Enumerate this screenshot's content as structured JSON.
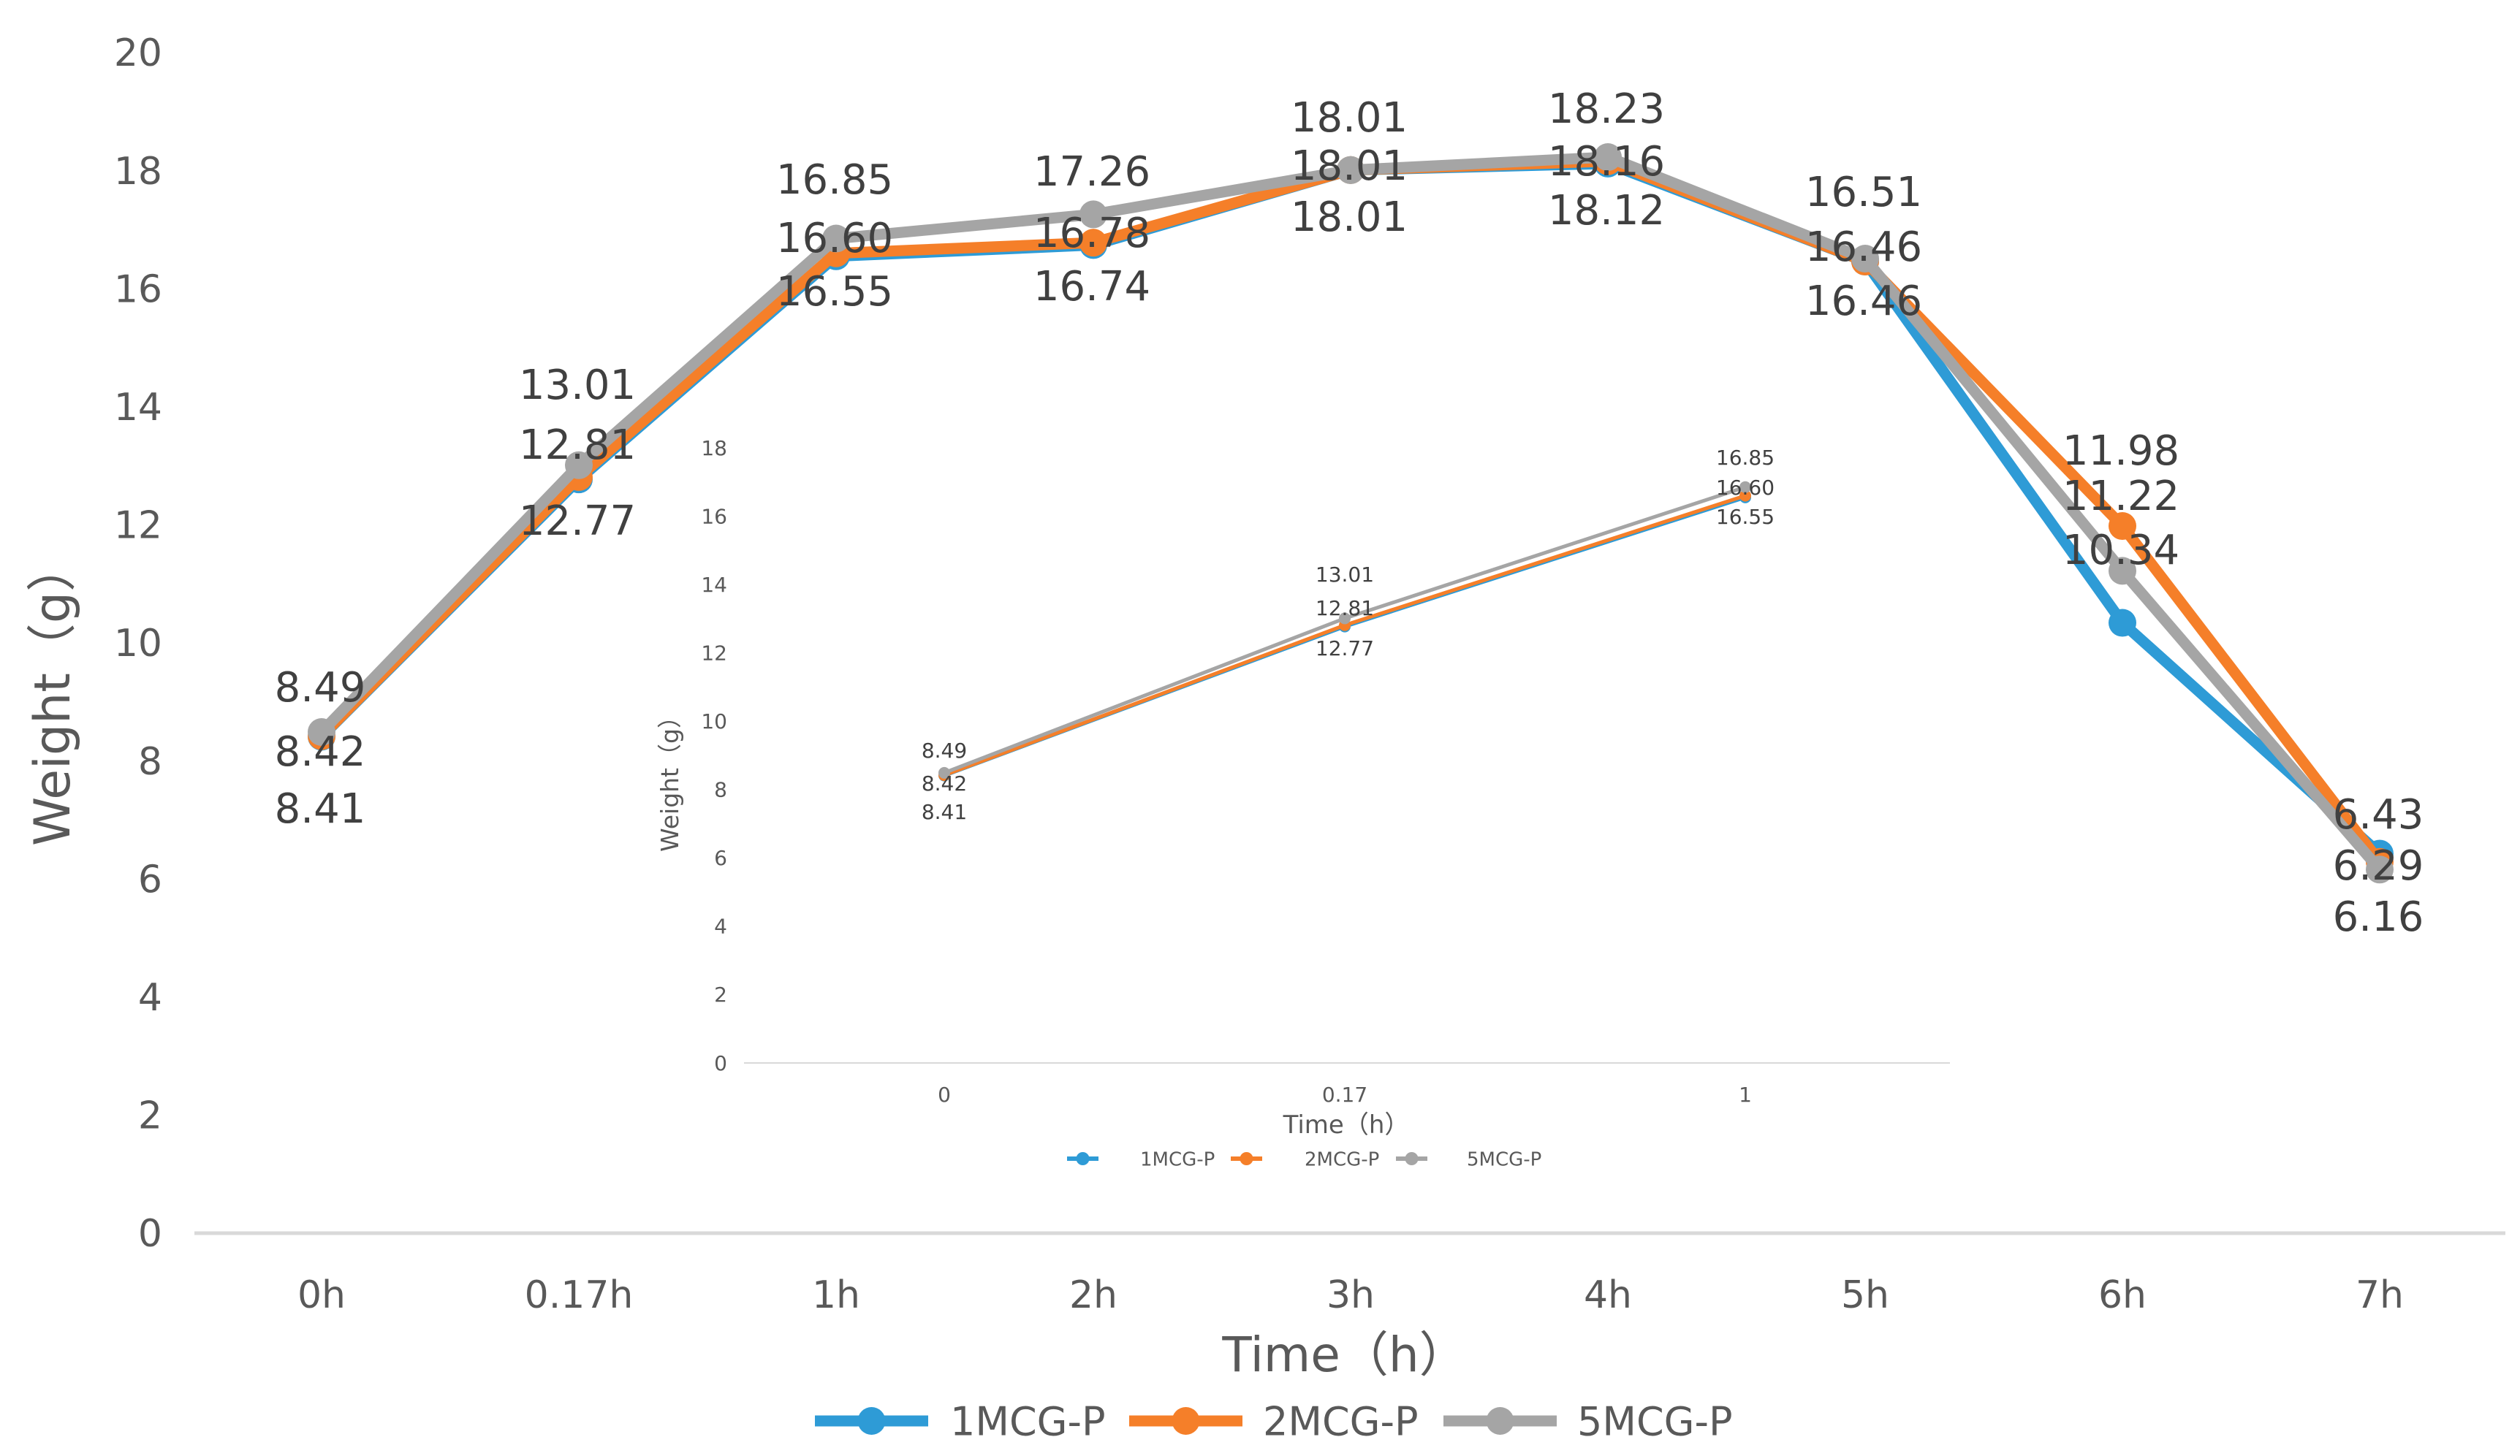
{
  "chart_data": [
    {
      "id": "main",
      "type": "line",
      "title": "",
      "xlabel": "Time（h）",
      "ylabel": "Weight（g）",
      "categories": [
        "0h",
        "0.17h",
        "1h",
        "2h",
        "3h",
        "4h",
        "5h",
        "6h",
        "7h"
      ],
      "ylim": [
        0,
        20
      ],
      "yticks": [
        "0",
        "2",
        "4",
        "6",
        "8",
        "10",
        "12",
        "14",
        "16",
        "18",
        "20"
      ],
      "grid": false,
      "legend": "bottom",
      "series": [
        {
          "name": "1MCG-P",
          "color": "#2E9BD6",
          "values": [
            8.41,
            12.77,
            16.55,
            16.74,
            18.01,
            18.12,
            16.46,
            10.34,
            6.43
          ]
        },
        {
          "name": "2MCG-P",
          "color": "#F57F29",
          "values": [
            8.42,
            12.81,
            16.6,
            16.78,
            18.01,
            18.16,
            16.46,
            11.98,
            6.29
          ]
        },
        {
          "name": "5MCG-P",
          "color": "#A5A5A5",
          "values": [
            8.49,
            13.01,
            16.85,
            17.26,
            18.01,
            18.23,
            16.51,
            11.22,
            6.16
          ]
        }
      ],
      "data_labels": [
        [
          "8.49",
          "8.42",
          "8.41"
        ],
        [
          "13.01",
          "12.81",
          "12.77"
        ],
        [
          "16.85",
          "16.60",
          "16.55"
        ],
        [
          "17.26",
          "16.78",
          "16.74"
        ],
        [
          "18.01",
          "18.01",
          "18.01"
        ],
        [
          "18.23",
          "18.16",
          "18.12"
        ],
        [
          "16.51",
          "16.46",
          "16.46"
        ],
        [
          "11.98",
          "11.22",
          "10.34"
        ],
        [
          "6.43",
          "6.29",
          "6.16"
        ]
      ]
    },
    {
      "id": "inset",
      "type": "line",
      "title": "",
      "xlabel": "Time（h）",
      "ylabel": "Weight（g）",
      "categories": [
        "0",
        "0.17",
        "1"
      ],
      "ylim": [
        0,
        18
      ],
      "yticks": [
        "0",
        "2",
        "4",
        "6",
        "8",
        "10",
        "12",
        "14",
        "16",
        "18"
      ],
      "grid": false,
      "legend": "bottom",
      "series": [
        {
          "name": "1MCG-P",
          "color": "#2E9BD6",
          "values": [
            8.41,
            12.77,
            16.55
          ]
        },
        {
          "name": "2MCG-P",
          "color": "#F57F29",
          "values": [
            8.42,
            12.81,
            16.6
          ]
        },
        {
          "name": "5MCG-P",
          "color": "#A5A5A5",
          "values": [
            8.49,
            13.01,
            16.85
          ]
        }
      ],
      "data_labels": [
        [
          "8.49",
          "8.42",
          "8.41"
        ],
        [
          "13.01",
          "12.81",
          "12.77"
        ],
        [
          "16.85",
          "16.60",
          "16.55"
        ]
      ]
    }
  ]
}
